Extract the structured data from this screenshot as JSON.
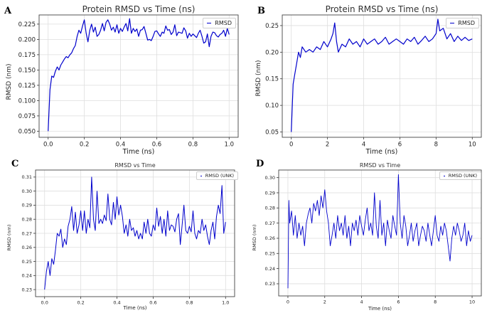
{
  "chart_data": [
    {
      "type": "line",
      "panel_label": "A",
      "title": "Protein RMSD vs Time (ns)",
      "xlabel": "Time (ns)",
      "ylabel": "RMSD (nm)",
      "xlim": [
        -0.05,
        1.05
      ],
      "ylim": [
        0.04,
        0.24
      ],
      "xticks": [
        0.0,
        0.2,
        0.4,
        0.6,
        0.8,
        1.0
      ],
      "xtick_labels": [
        "0.0",
        "0.2",
        "0.4",
        "0.6",
        "0.8",
        "1.0"
      ],
      "yticks": [
        0.05,
        0.075,
        0.1,
        0.125,
        0.15,
        0.175,
        0.2,
        0.225
      ],
      "ytick_labels": [
        "0.050",
        "0.075",
        "0.100",
        "0.125",
        "0.150",
        "0.175",
        "0.200",
        "0.225"
      ],
      "grid": true,
      "legend_position": "top-right",
      "color": "#0000cc",
      "series": [
        {
          "name": "RMSD",
          "x": [
            0,
            0.01,
            0.02,
            0.03,
            0.04,
            0.05,
            0.06,
            0.07,
            0.08,
            0.09,
            0.1,
            0.11,
            0.12,
            0.13,
            0.14,
            0.15,
            0.16,
            0.17,
            0.18,
            0.19,
            0.2,
            0.21,
            0.22,
            0.23,
            0.24,
            0.25,
            0.26,
            0.27,
            0.28,
            0.29,
            0.3,
            0.31,
            0.32,
            0.33,
            0.34,
            0.35,
            0.36,
            0.37,
            0.38,
            0.39,
            0.4,
            0.41,
            0.42,
            0.43,
            0.44,
            0.45,
            0.46,
            0.47,
            0.48,
            0.49,
            0.5,
            0.51,
            0.52,
            0.53,
            0.54,
            0.55,
            0.56,
            0.57,
            0.58,
            0.59,
            0.6,
            0.61,
            0.62,
            0.63,
            0.64,
            0.65,
            0.66,
            0.67,
            0.68,
            0.69,
            0.7,
            0.71,
            0.72,
            0.73,
            0.74,
            0.75,
            0.76,
            0.77,
            0.78,
            0.79,
            0.8,
            0.81,
            0.82,
            0.83,
            0.84,
            0.85,
            0.86,
            0.87,
            0.88,
            0.89,
            0.9,
            0.91,
            0.92,
            0.93,
            0.94,
            0.95,
            0.96,
            0.97,
            0.98,
            0.99,
            1.0
          ],
          "y": [
            0.05,
            0.118,
            0.14,
            0.138,
            0.148,
            0.155,
            0.15,
            0.158,
            0.163,
            0.168,
            0.172,
            0.17,
            0.175,
            0.178,
            0.185,
            0.19,
            0.205,
            0.215,
            0.21,
            0.222,
            0.232,
            0.21,
            0.196,
            0.215,
            0.225,
            0.212,
            0.22,
            0.205,
            0.208,
            0.215,
            0.226,
            0.214,
            0.228,
            0.232,
            0.225,
            0.215,
            0.22,
            0.212,
            0.224,
            0.21,
            0.218,
            0.213,
            0.22,
            0.226,
            0.214,
            0.234,
            0.21,
            0.218,
            0.213,
            0.217,
            0.205,
            0.215,
            0.216,
            0.221,
            0.21,
            0.199,
            0.2,
            0.198,
            0.205,
            0.213,
            0.214,
            0.209,
            0.205,
            0.212,
            0.21,
            0.222,
            0.215,
            0.216,
            0.208,
            0.212,
            0.224,
            0.206,
            0.212,
            0.211,
            0.21,
            0.219,
            0.214,
            0.202,
            0.21,
            0.205,
            0.209,
            0.206,
            0.203,
            0.21,
            0.215,
            0.205,
            0.194,
            0.196,
            0.209,
            0.188,
            0.205,
            0.212,
            0.211,
            0.206,
            0.204,
            0.208,
            0.21,
            0.215,
            0.205,
            0.218,
            0.208
          ]
        }
      ]
    },
    {
      "type": "line",
      "panel_label": "B",
      "title": "Protein RMSD vs Time (ns)",
      "xlabel": "Time (ns)",
      "ylabel": "RMSD (nm)",
      "xlim": [
        -0.5,
        10.5
      ],
      "ylim": [
        0.04,
        0.27
      ],
      "xticks": [
        0,
        2,
        4,
        6,
        8,
        10
      ],
      "xtick_labels": [
        "0",
        "2",
        "4",
        "6",
        "8",
        "10"
      ],
      "yticks": [
        0.05,
        0.1,
        0.15,
        0.2,
        0.25
      ],
      "ytick_labels": [
        "0.05",
        "0.10",
        "0.15",
        "0.20",
        "0.25"
      ],
      "grid": true,
      "legend_position": "top-right",
      "color": "#0000cc",
      "series": [
        {
          "name": "RMSD",
          "x": [
            0,
            0.1,
            0.2,
            0.3,
            0.4,
            0.5,
            0.6,
            0.8,
            1.0,
            1.2,
            1.4,
            1.6,
            1.8,
            2.0,
            2.2,
            2.3,
            2.4,
            2.5,
            2.6,
            2.8,
            3.0,
            3.2,
            3.4,
            3.6,
            3.8,
            4.0,
            4.2,
            4.4,
            4.6,
            4.8,
            5.0,
            5.2,
            5.4,
            5.6,
            5.8,
            6.0,
            6.2,
            6.4,
            6.6,
            6.8,
            7.0,
            7.2,
            7.4,
            7.6,
            7.8,
            8.0,
            8.1,
            8.2,
            8.4,
            8.6,
            8.8,
            9.0,
            9.2,
            9.4,
            9.6,
            9.8,
            10.0
          ],
          "y": [
            0.05,
            0.14,
            0.16,
            0.18,
            0.2,
            0.19,
            0.21,
            0.2,
            0.205,
            0.2,
            0.21,
            0.205,
            0.22,
            0.21,
            0.225,
            0.235,
            0.255,
            0.22,
            0.2,
            0.215,
            0.21,
            0.225,
            0.215,
            0.22,
            0.21,
            0.225,
            0.215,
            0.22,
            0.225,
            0.215,
            0.22,
            0.228,
            0.215,
            0.22,
            0.225,
            0.22,
            0.215,
            0.225,
            0.22,
            0.228,
            0.215,
            0.222,
            0.23,
            0.22,
            0.225,
            0.235,
            0.262,
            0.24,
            0.245,
            0.225,
            0.235,
            0.22,
            0.23,
            0.222,
            0.228,
            0.222,
            0.225
          ]
        }
      ]
    },
    {
      "type": "line",
      "panel_label": "C",
      "title": "RMSD vs Time",
      "xlabel": "Time (ns)",
      "ylabel": "RMSD (nm)",
      "xlim": [
        -0.05,
        1.05
      ],
      "ylim": [
        0.225,
        0.315
      ],
      "xticks": [
        0.0,
        0.2,
        0.4,
        0.6,
        0.8,
        1.0
      ],
      "xtick_labels": [
        "0.0",
        "0.2",
        "0.4",
        "0.6",
        "0.8",
        "1.0"
      ],
      "yticks": [
        0.23,
        0.24,
        0.25,
        0.26,
        0.27,
        0.28,
        0.29,
        0.3,
        0.31
      ],
      "ytick_labels": [
        "0.23",
        "0.24",
        "0.25",
        "0.26",
        "0.27",
        "0.28",
        "0.29",
        "0.30",
        "0.31"
      ],
      "grid": true,
      "legend_position": "top-right",
      "color": "#0000cc",
      "series": [
        {
          "name": "RMSD (UNK)",
          "x": [
            0,
            0.01,
            0.02,
            0.03,
            0.04,
            0.05,
            0.06,
            0.07,
            0.08,
            0.09,
            0.1,
            0.11,
            0.12,
            0.13,
            0.14,
            0.15,
            0.16,
            0.17,
            0.18,
            0.19,
            0.2,
            0.21,
            0.22,
            0.23,
            0.24,
            0.25,
            0.26,
            0.27,
            0.28,
            0.29,
            0.3,
            0.31,
            0.32,
            0.33,
            0.34,
            0.35,
            0.36,
            0.37,
            0.38,
            0.39,
            0.4,
            0.41,
            0.42,
            0.43,
            0.44,
            0.45,
            0.46,
            0.47,
            0.48,
            0.49,
            0.5,
            0.51,
            0.52,
            0.53,
            0.54,
            0.55,
            0.56,
            0.57,
            0.58,
            0.59,
            0.6,
            0.61,
            0.62,
            0.63,
            0.64,
            0.65,
            0.66,
            0.67,
            0.68,
            0.69,
            0.7,
            0.71,
            0.72,
            0.73,
            0.74,
            0.75,
            0.76,
            0.77,
            0.78,
            0.79,
            0.8,
            0.81,
            0.82,
            0.83,
            0.84,
            0.85,
            0.86,
            0.87,
            0.88,
            0.89,
            0.9,
            0.91,
            0.92,
            0.93,
            0.94,
            0.95,
            0.96,
            0.97,
            0.98,
            0.99,
            1.0
          ],
          "y": [
            0.23,
            0.243,
            0.25,
            0.24,
            0.252,
            0.248,
            0.258,
            0.27,
            0.268,
            0.273,
            0.26,
            0.266,
            0.262,
            0.275,
            0.28,
            0.289,
            0.272,
            0.285,
            0.27,
            0.276,
            0.286,
            0.272,
            0.286,
            0.27,
            0.28,
            0.274,
            0.31,
            0.28,
            0.272,
            0.3,
            0.277,
            0.28,
            0.277,
            0.283,
            0.279,
            0.298,
            0.28,
            0.276,
            0.292,
            0.28,
            0.296,
            0.283,
            0.29,
            0.282,
            0.27,
            0.276,
            0.268,
            0.28,
            0.272,
            0.274,
            0.268,
            0.272,
            0.266,
            0.27,
            0.266,
            0.278,
            0.27,
            0.28,
            0.27,
            0.268,
            0.276,
            0.272,
            0.288,
            0.275,
            0.282,
            0.27,
            0.28,
            0.268,
            0.286,
            0.272,
            0.276,
            0.275,
            0.271,
            0.28,
            0.284,
            0.262,
            0.276,
            0.29,
            0.272,
            0.27,
            0.275,
            0.271,
            0.286,
            0.27,
            0.266,
            0.272,
            0.27,
            0.28,
            0.272,
            0.276,
            0.268,
            0.262,
            0.272,
            0.278,
            0.266,
            0.282,
            0.29,
            0.284,
            0.304,
            0.27,
            0.278
          ]
        }
      ]
    },
    {
      "type": "line",
      "panel_label": "D",
      "title": "RMSD vs Time",
      "xlabel": "Time (ns)",
      "ylabel": "RMSD (nm)",
      "xlim": [
        -0.5,
        10.5
      ],
      "ylim": [
        0.222,
        0.305
      ],
      "xticks": [
        0,
        2,
        4,
        6,
        8,
        10
      ],
      "xtick_labels": [
        "0",
        "2",
        "4",
        "6",
        "8",
        "10"
      ],
      "yticks": [
        0.23,
        0.24,
        0.25,
        0.26,
        0.27,
        0.28,
        0.29,
        0.3
      ],
      "ytick_labels": [
        "0.23",
        "0.24",
        "0.25",
        "0.26",
        "0.27",
        "0.28",
        "0.29",
        "0.30"
      ],
      "grid": true,
      "legend_position": "top-right",
      "color": "#0000cc",
      "series": [
        {
          "name": "RMSD (UNK)",
          "x": [
            0,
            0.05,
            0.1,
            0.2,
            0.3,
            0.4,
            0.5,
            0.6,
            0.7,
            0.8,
            0.9,
            1.0,
            1.1,
            1.2,
            1.3,
            1.4,
            1.5,
            1.6,
            1.7,
            1.8,
            1.9,
            2.0,
            2.1,
            2.2,
            2.3,
            2.4,
            2.5,
            2.6,
            2.7,
            2.8,
            2.9,
            3.0,
            3.1,
            3.2,
            3.3,
            3.4,
            3.5,
            3.6,
            3.7,
            3.8,
            3.9,
            4.0,
            4.1,
            4.2,
            4.3,
            4.4,
            4.5,
            4.6,
            4.7,
            4.8,
            4.9,
            5.0,
            5.1,
            5.2,
            5.3,
            5.4,
            5.5,
            5.6,
            5.7,
            5.8,
            5.9,
            6.0,
            6.1,
            6.2,
            6.3,
            6.4,
            6.5,
            6.6,
            6.7,
            6.8,
            6.9,
            7.0,
            7.1,
            7.2,
            7.3,
            7.4,
            7.5,
            7.6,
            7.7,
            7.8,
            7.9,
            8.0,
            8.1,
            8.2,
            8.3,
            8.4,
            8.5,
            8.6,
            8.7,
            8.8,
            8.9,
            9.0,
            9.1,
            9.2,
            9.3,
            9.4,
            9.5,
            9.6,
            9.7,
            9.8,
            9.9,
            10.0
          ],
          "y": [
            0.227,
            0.285,
            0.27,
            0.278,
            0.262,
            0.275,
            0.26,
            0.27,
            0.262,
            0.268,
            0.255,
            0.27,
            0.276,
            0.28,
            0.27,
            0.283,
            0.278,
            0.285,
            0.275,
            0.288,
            0.28,
            0.292,
            0.278,
            0.27,
            0.255,
            0.262,
            0.27,
            0.26,
            0.275,
            0.265,
            0.27,
            0.262,
            0.275,
            0.26,
            0.268,
            0.255,
            0.27,
            0.265,
            0.272,
            0.262,
            0.275,
            0.268,
            0.262,
            0.272,
            0.28,
            0.265,
            0.27,
            0.262,
            0.29,
            0.268,
            0.26,
            0.285,
            0.262,
            0.27,
            0.255,
            0.272,
            0.265,
            0.26,
            0.275,
            0.268,
            0.262,
            0.302,
            0.27,
            0.26,
            0.275,
            0.268,
            0.255,
            0.262,
            0.27,
            0.258,
            0.265,
            0.27,
            0.255,
            0.262,
            0.268,
            0.265,
            0.258,
            0.27,
            0.262,
            0.255,
            0.265,
            0.275,
            0.262,
            0.258,
            0.268,
            0.262,
            0.27,
            0.265,
            0.255,
            0.245,
            0.26,
            0.268,
            0.262,
            0.27,
            0.265,
            0.258,
            0.262,
            0.27,
            0.255,
            0.265,
            0.258,
            0.262
          ]
        }
      ]
    }
  ]
}
